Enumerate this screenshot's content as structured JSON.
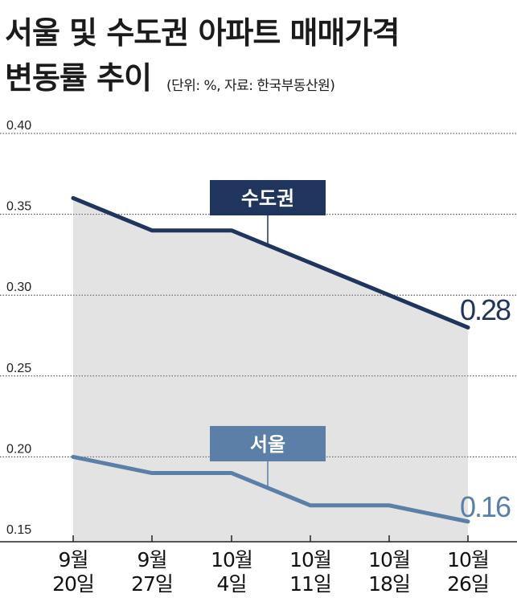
{
  "header": {
    "title_line1": "서울 및 수도권 아파트 매매가격",
    "title_line2": "변동률 추이",
    "source_note": "(단위: %, 자료: 한국부동산원)"
  },
  "chart_data": {
    "type": "area",
    "title": "서울 및 수도권 아파트 매매가격 변동률 추이",
    "unit": "%",
    "source": "한국부동산원",
    "categories": [
      [
        "9월",
        "20일"
      ],
      [
        "9월",
        "27일"
      ],
      [
        "10월",
        "4일"
      ],
      [
        "10월",
        "11일"
      ],
      [
        "10월",
        "18일"
      ],
      [
        "10월",
        "26일"
      ]
    ],
    "yticks": [
      "0.40",
      "0.35",
      "0.30",
      "0.25",
      "0.20",
      "0.15"
    ],
    "ylim": [
      0.15,
      0.4
    ],
    "grid": "dotted horizontal",
    "series": [
      {
        "name": "수도권",
        "values": [
          0.36,
          0.34,
          0.34,
          0.32,
          0.3,
          0.28
        ],
        "color": "#1f355e",
        "end_label": "0.28"
      },
      {
        "name": "서울",
        "values": [
          0.2,
          0.19,
          0.19,
          0.17,
          0.17,
          0.16
        ],
        "color": "#5b7fa6",
        "end_label": "0.16"
      }
    ],
    "fill_color": "#e3e3e3"
  }
}
